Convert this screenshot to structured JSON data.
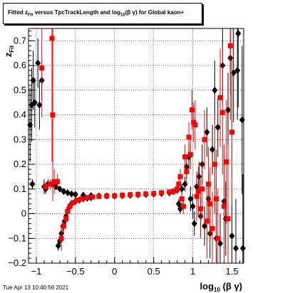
{
  "title": {
    "prefix": "Fitted  z",
    "sub_fit": "Fit",
    "middle": " versus TpcTrackLength and log",
    "sub_10": "10",
    "suffix": "(β γ) for Global kaon+"
  },
  "timestamp": "Tue Apr 13 10:40:56 2021",
  "colors": {
    "series_a": "#000000",
    "series_b": "#ff0000",
    "grid": "#000000"
  },
  "chart_data": {
    "type": "scatter",
    "xlabel": "log10 (β γ)",
    "xlabel_main": "log",
    "xlabel_sub": "10",
    "xlabel_tail": " (β γ)",
    "ylabel": "zFit",
    "ylabel_main": "z",
    "ylabel_sub": "Fit",
    "xlim": [
      -1.1,
      1.65
    ],
    "ylim": [
      -0.2,
      0.75
    ],
    "grid": true,
    "x_ticks": [
      -1,
      -0.5,
      0,
      0.5,
      1,
      1.5
    ],
    "x_tick_labels": [
      "−1",
      "−0.5",
      "0",
      "0.5",
      "1",
      "1.5"
    ],
    "y_ticks": [
      -0.2,
      -0.1,
      0,
      0.1,
      0.2,
      0.3,
      0.4,
      0.5,
      0.6,
      0.7
    ],
    "y_tick_labels": [
      "−0.2",
      "−0.1",
      "0",
      "0.1",
      "0.2",
      "0.3",
      "0.4",
      "0.5",
      "0.6",
      "0.7"
    ],
    "series": [
      {
        "marker": "diamond",
        "points": [
          [
            -1.06,
            0.44,
            0.15
          ],
          [
            -1.04,
            0.54,
            0.12
          ],
          [
            -1.02,
            0.45,
            0.1
          ],
          [
            -1.08,
            0.36,
            0.15
          ],
          [
            -1.05,
            0.12,
            0.02
          ],
          [
            -0.98,
            0.61,
            0.1
          ],
          [
            -0.96,
            0.44,
            0.1
          ],
          [
            -0.93,
            0.54,
            0.08
          ],
          [
            -0.9,
            0.11,
            0.03
          ],
          [
            -0.88,
            0.1,
            0.02
          ],
          [
            -0.85,
            0.12,
            0.02
          ],
          [
            -0.8,
            0.12,
            0.01
          ],
          [
            -0.75,
            0.11,
            0.01
          ],
          [
            -0.7,
            0.1,
            0.01
          ],
          [
            -0.65,
            0.09,
            0.01
          ],
          [
            -0.6,
            0.085,
            0.01
          ],
          [
            -0.55,
            0.08,
            0.01
          ],
          [
            -0.5,
            0.078,
            0.005
          ],
          [
            -0.4,
            0.075,
            0.005
          ],
          [
            -0.3,
            0.073,
            0.005
          ],
          [
            -0.2,
            0.072,
            0.005
          ],
          [
            -0.1,
            0.072,
            0.005
          ],
          [
            0,
            0.072,
            0.005
          ],
          [
            0.1,
            0.073,
            0.005
          ],
          [
            0.2,
            0.075,
            0.005
          ],
          [
            0.3,
            0.077,
            0.005
          ],
          [
            0.4,
            0.078,
            0.005
          ],
          [
            0.5,
            0.08,
            0.005
          ],
          [
            0.6,
            0.082,
            0.005
          ],
          [
            0.7,
            0.085,
            0.01
          ],
          [
            0.75,
            0.09,
            0.01
          ],
          [
            0.8,
            0.095,
            0.01
          ],
          [
            0.82,
            0.04,
            0.02
          ],
          [
            0.84,
            0.02,
            0.02
          ],
          [
            0.86,
            0.1,
            0.02
          ],
          [
            -0.72,
            -0.13,
            0.02
          ],
          [
            -0.7,
            -0.11,
            0.02
          ],
          [
            -0.68,
            -0.08,
            0.02
          ],
          [
            -0.66,
            -0.05,
            0.02
          ],
          [
            -0.64,
            -0.03,
            0.01
          ],
          [
            -0.62,
            -0.01,
            0.01
          ],
          [
            -0.6,
            0.01,
            0.01
          ],
          [
            -0.58,
            0.025,
            0.01
          ],
          [
            -0.55,
            0.04,
            0.01
          ],
          [
            -0.5,
            0.05,
            0.01
          ],
          [
            -0.45,
            0.055,
            0.005
          ],
          [
            -0.4,
            0.06,
            0.005
          ],
          [
            -0.35,
            0.063,
            0.005
          ],
          [
            -0.3,
            0.065,
            0.005
          ],
          [
            0.9,
            0.12,
            0.03
          ],
          [
            0.92,
            0.19,
            0.05
          ],
          [
            0.95,
            0.23,
            0.05
          ],
          [
            0.97,
            0.06,
            0.05
          ],
          [
            1,
            0.03,
            0.05
          ],
          [
            1.02,
            -0.04,
            0.05
          ],
          [
            1.05,
            0.11,
            0.06
          ],
          [
            1.08,
            0.15,
            0.06
          ],
          [
            1.1,
            -0.01,
            0.08
          ],
          [
            1.12,
            0.2,
            0.08
          ],
          [
            1.15,
            -0.05,
            0.08
          ],
          [
            1.18,
            0.33,
            0.1
          ],
          [
            1.2,
            0.06,
            0.1
          ],
          [
            1.22,
            -0.08,
            0.1
          ],
          [
            1.25,
            0.26,
            0.1
          ],
          [
            1.28,
            0.5,
            0.12
          ],
          [
            1.3,
            -0.1,
            0.12
          ],
          [
            1.32,
            0.35,
            0.12
          ],
          [
            1.35,
            -0.12,
            0.12
          ],
          [
            1.38,
            0.6,
            0.15
          ],
          [
            1.4,
            0.05,
            0.15
          ],
          [
            1.42,
            -0.02,
            0.15
          ],
          [
            1.45,
            0.42,
            0.15
          ],
          [
            1.48,
            0.63,
            0.15
          ],
          [
            1.5,
            -0.09,
            0.2
          ],
          [
            1.52,
            0.57,
            0.2
          ],
          [
            1.55,
            -0.14,
            0.2
          ],
          [
            1.57,
            0.58,
            0.2
          ],
          [
            1.63,
            0.38,
            0.3
          ],
          [
            1.64,
            -0.14,
            0.3
          ],
          [
            1.58,
            0.73,
            0.3
          ]
        ]
      },
      {
        "marker": "square",
        "points": [
          [
            -0.93,
            0.59,
            0.2
          ],
          [
            -0.88,
            0.11,
            0.02
          ],
          [
            -0.82,
            0.12,
            0.02
          ],
          [
            -0.8,
            0.71,
            0.5
          ],
          [
            -0.79,
            0.4,
            0.35
          ],
          [
            -0.77,
            0.13,
            0.05
          ],
          [
            -0.73,
            0.13,
            0.03
          ],
          [
            -0.68,
            -0.1,
            0.05
          ],
          [
            -0.65,
            -0.05,
            0.03
          ],
          [
            -0.62,
            -0.02,
            0.02
          ],
          [
            -0.6,
            0.01,
            0.02
          ],
          [
            -0.57,
            0.03,
            0.01
          ],
          [
            -0.53,
            0.045,
            0.01
          ],
          [
            -0.48,
            0.055,
            0.01
          ],
          [
            -0.42,
            0.06,
            0.005
          ],
          [
            -0.35,
            0.065,
            0.005
          ],
          [
            -0.28,
            0.068,
            0.005
          ],
          [
            -0.2,
            0.07,
            0.005
          ],
          [
            -0.1,
            0.072,
            0.005
          ],
          [
            0,
            0.073,
            0.005
          ],
          [
            0.1,
            0.075,
            0.005
          ],
          [
            0.2,
            0.077,
            0.005
          ],
          [
            0.3,
            0.078,
            0.005
          ],
          [
            0.4,
            0.08,
            0.005
          ],
          [
            0.5,
            0.082,
            0.005
          ],
          [
            0.6,
            0.085,
            0.01
          ],
          [
            0.7,
            0.088,
            0.01
          ],
          [
            0.75,
            0.09,
            0.01
          ],
          [
            0.8,
            0.1,
            0.02
          ],
          [
            0.82,
            0.12,
            0.02
          ],
          [
            0.84,
            0.15,
            0.03
          ],
          [
            0.86,
            0.06,
            0.03
          ],
          [
            0.88,
            0.03,
            0.03
          ],
          [
            0.9,
            0.23,
            0.05
          ],
          [
            0.92,
            0.17,
            0.05
          ],
          [
            0.95,
            0.31,
            0.06
          ],
          [
            0.97,
            0.24,
            0.06
          ],
          [
            0.99,
            0.42,
            0.08
          ],
          [
            1.01,
            0.37,
            0.08
          ],
          [
            1.03,
            0.36,
            0.1
          ],
          [
            1.05,
            0.07,
            0.1
          ],
          [
            1.07,
            0.09,
            0.1
          ],
          [
            1.1,
            0.02,
            0.12
          ],
          [
            1.12,
            0.1,
            0.12
          ],
          [
            1.15,
            0.3,
            0.12
          ],
          [
            1.18,
            -0.03,
            0.15
          ],
          [
            1.2,
            0.12,
            0.15
          ],
          [
            1.22,
            0.04,
            0.15
          ],
          [
            1.25,
            -0.06,
            0.15
          ],
          [
            1.28,
            0.2,
            0.2
          ],
          [
            1.3,
            0.06,
            0.2
          ],
          [
            1.32,
            -0.1,
            0.2
          ],
          [
            1.35,
            0.47,
            0.2
          ],
          [
            1.38,
            0.41,
            0.25
          ],
          [
            1.4,
            0.03,
            0.25
          ],
          [
            1.43,
            0.21,
            0.25
          ],
          [
            1.45,
            -0.02,
            0.3
          ],
          [
            1.48,
            0.68,
            0.3
          ],
          [
            1.5,
            0.33,
            0.3
          ]
        ]
      }
    ]
  }
}
